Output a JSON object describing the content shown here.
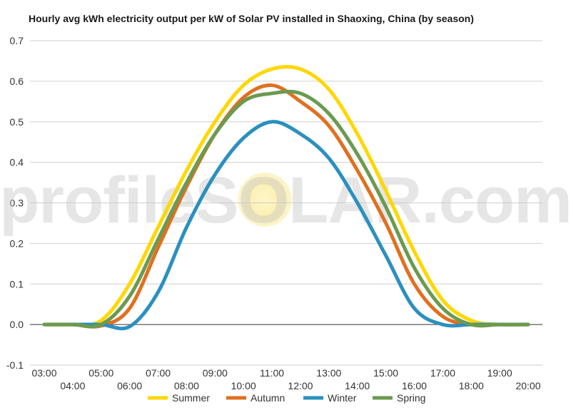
{
  "chart_data": {
    "type": "line",
    "title": "Hourly avg kWh electricity output per kW of Solar PV installed in Shaoxing, China (by season)",
    "xlabel": "",
    "ylabel": "",
    "ylim": [
      -0.1,
      0.7
    ],
    "yticks": [
      "-0.1",
      "0.0",
      "0.1",
      "0.2",
      "0.3",
      "0.4",
      "0.5",
      "0.6",
      "0.7"
    ],
    "xlim": [
      3,
      20
    ],
    "xticks": [
      {
        "h": 3,
        "label": "03:00"
      },
      {
        "h": 4,
        "label": "04:00"
      },
      {
        "h": 5,
        "label": "05:00"
      },
      {
        "h": 6,
        "label": "06:00"
      },
      {
        "h": 7,
        "label": "07:00"
      },
      {
        "h": 8,
        "label": "08:00"
      },
      {
        "h": 9,
        "label": "09:00"
      },
      {
        "h": 10,
        "label": "10:00"
      },
      {
        "h": 11,
        "label": "11:00"
      },
      {
        "h": 12,
        "label": "12:00"
      },
      {
        "h": 13,
        "label": "13:00"
      },
      {
        "h": 14,
        "label": "14:00"
      },
      {
        "h": 15,
        "label": "15:00"
      },
      {
        "h": 16,
        "label": "16:00"
      },
      {
        "h": 17,
        "label": "17:00"
      },
      {
        "h": 18,
        "label": "18:00"
      },
      {
        "h": 19,
        "label": "19:00"
      },
      {
        "h": 20,
        "label": "20:00"
      }
    ],
    "x": [
      3,
      4,
      5,
      6,
      7,
      8,
      9,
      10,
      11,
      12,
      13,
      14,
      15,
      16,
      17,
      18,
      19,
      20
    ],
    "grid": true,
    "legend_position": "bottom",
    "watermark": "profileSOLAR.com",
    "series": [
      {
        "name": "Summer",
        "color": "#ffd700",
        "values": [
          0.0,
          0.0,
          0.01,
          0.1,
          0.24,
          0.38,
          0.5,
          0.59,
          0.63,
          0.63,
          0.58,
          0.47,
          0.33,
          0.18,
          0.06,
          0.01,
          0.0,
          0.0
        ]
      },
      {
        "name": "Autumn",
        "color": "#e07020",
        "values": [
          0.0,
          0.0,
          -0.003,
          0.04,
          0.19,
          0.34,
          0.47,
          0.56,
          0.59,
          0.55,
          0.49,
          0.38,
          0.25,
          0.1,
          0.02,
          0.0,
          0.0,
          0.0
        ]
      },
      {
        "name": "Winter",
        "color": "#2b90c0",
        "values": [
          0.0,
          0.0,
          0.0,
          -0.005,
          0.08,
          0.24,
          0.37,
          0.46,
          0.5,
          0.47,
          0.41,
          0.3,
          0.17,
          0.04,
          0.0,
          0.0,
          0.0,
          0.0
        ]
      },
      {
        "name": "Spring",
        "color": "#6b9a50",
        "values": [
          0.0,
          0.0,
          0.0,
          0.07,
          0.21,
          0.35,
          0.47,
          0.55,
          0.57,
          0.57,
          0.52,
          0.42,
          0.29,
          0.14,
          0.04,
          0.0,
          0.0,
          0.0
        ]
      }
    ]
  }
}
